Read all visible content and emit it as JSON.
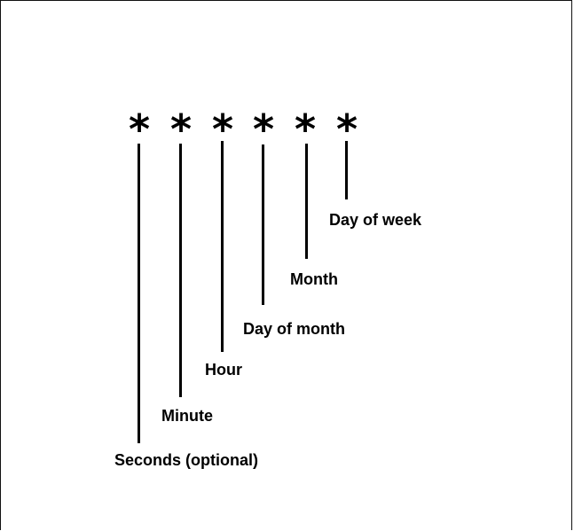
{
  "fields": [
    {
      "symbol": "*",
      "label": "Seconds (optional)"
    },
    {
      "symbol": "*",
      "label": "Minute"
    },
    {
      "symbol": "*",
      "label": "Hour"
    },
    {
      "symbol": "*",
      "label": "Day of month"
    },
    {
      "symbol": "*",
      "label": "Month"
    },
    {
      "symbol": "*",
      "label": "Day of week"
    }
  ],
  "colors": {
    "foreground": "#000000",
    "background": "#ffffff"
  }
}
